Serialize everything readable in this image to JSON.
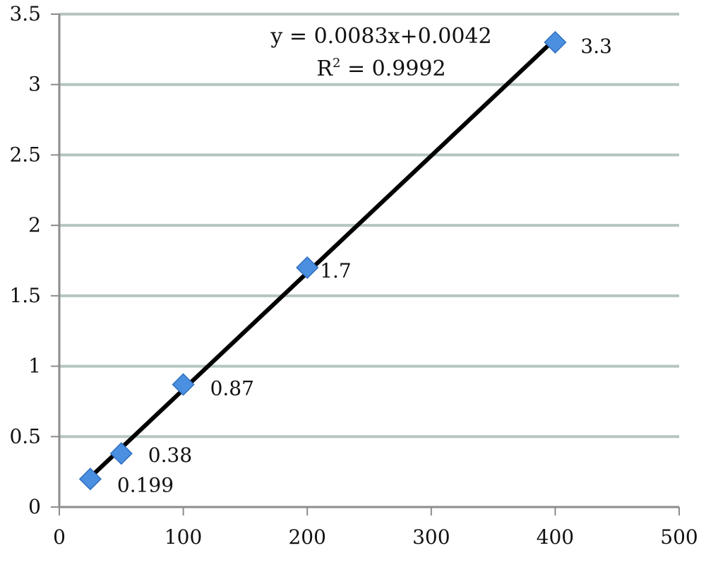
{
  "chart_data": {
    "type": "scatter",
    "title": "",
    "xlabel": "",
    "ylabel": "",
    "xlim": [
      0,
      500
    ],
    "ylim": [
      0,
      3.5
    ],
    "xticks": [
      "0",
      "100",
      "200",
      "300",
      "400",
      "500"
    ],
    "yticks": [
      "0",
      "0.5",
      "1",
      "1.5",
      "2",
      "2.5",
      "3",
      "3.5"
    ],
    "grid": "horizontal",
    "series": [
      {
        "x": [
          25,
          50,
          100,
          200,
          400
        ],
        "y": [
          0.199,
          0.38,
          0.87,
          1.7,
          3.3
        ],
        "labels": [
          "0.199",
          "0.38",
          "0.87",
          "1.7",
          "3.3"
        ],
        "marker": "diamond",
        "color": "#4a8fe0"
      }
    ],
    "trendline": {
      "type": "linear",
      "x_range": [
        25,
        400
      ],
      "slope": 0.0083,
      "intercept": 0.0042,
      "equation": "y = 0.0083x+0.0042",
      "r2_label": "R",
      "r2_sup": "2",
      "r2_value": " = 0.9992",
      "color": "#000000"
    },
    "colors": {
      "grid": "#b5c5c2",
      "axis": "#8c8c8c",
      "marker": "#4a8fe0",
      "marker_edge": "#2f6fbf",
      "trendline": "#000000"
    }
  }
}
